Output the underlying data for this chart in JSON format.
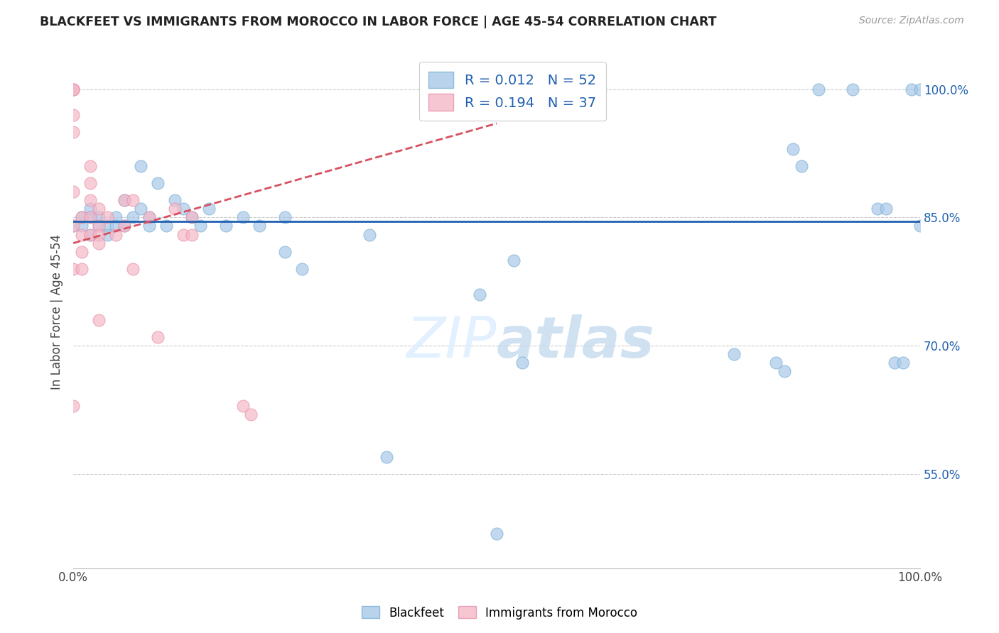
{
  "title": "BLACKFEET VS IMMIGRANTS FROM MOROCCO IN LABOR FORCE | AGE 45-54 CORRELATION CHART",
  "source": "Source: ZipAtlas.com",
  "ylabel": "In Labor Force | Age 45-54",
  "xlim": [
    0.0,
    1.0
  ],
  "ylim": [
    0.44,
    1.04
  ],
  "yticks": [
    0.55,
    0.7,
    0.85,
    1.0
  ],
  "yticklabels": [
    "55.0%",
    "70.0%",
    "85.0%",
    "100.0%"
  ],
  "xtick_left": "0.0%",
  "xtick_right": "100.0%",
  "R_blue": 0.012,
  "N_blue": 52,
  "R_pink": 0.194,
  "N_pink": 37,
  "blue_color": "#a8c8e8",
  "blue_edge_color": "#7aafd4",
  "pink_color": "#f4b8c8",
  "pink_edge_color": "#e890a8",
  "blue_line_color": "#2060b0",
  "pink_line_color": "#d85060",
  "watermark_color": "#ddeeff",
  "blue_scatter_x": [
    0.0,
    0.01,
    0.01,
    0.02,
    0.02,
    0.02,
    0.03,
    0.03,
    0.04,
    0.04,
    0.05,
    0.05,
    0.06,
    0.06,
    0.07,
    0.08,
    0.08,
    0.09,
    0.09,
    0.1,
    0.11,
    0.12,
    0.13,
    0.14,
    0.15,
    0.16,
    0.18,
    0.2,
    0.22,
    0.25,
    0.25,
    0.27,
    0.35,
    0.37,
    0.48,
    0.5,
    0.52,
    0.53,
    0.78,
    0.83,
    0.84,
    0.85,
    0.86,
    0.88,
    0.92,
    0.95,
    0.96,
    0.97,
    0.98,
    0.99,
    1.0,
    1.0
  ],
  "blue_scatter_y": [
    0.84,
    0.84,
    0.85,
    0.85,
    0.83,
    0.86,
    0.84,
    0.85,
    0.84,
    0.83,
    0.85,
    0.84,
    0.84,
    0.87,
    0.85,
    0.91,
    0.86,
    0.84,
    0.85,
    0.89,
    0.84,
    0.87,
    0.86,
    0.85,
    0.84,
    0.86,
    0.84,
    0.85,
    0.84,
    0.81,
    0.85,
    0.79,
    0.83,
    0.57,
    0.76,
    0.48,
    0.8,
    0.68,
    0.69,
    0.68,
    0.67,
    0.93,
    0.91,
    1.0,
    1.0,
    0.86,
    0.86,
    0.68,
    0.68,
    1.0,
    1.0,
    0.84
  ],
  "pink_scatter_x": [
    0.0,
    0.0,
    0.0,
    0.0,
    0.0,
    0.0,
    0.0,
    0.0,
    0.0,
    0.01,
    0.01,
    0.01,
    0.01,
    0.02,
    0.02,
    0.02,
    0.02,
    0.02,
    0.03,
    0.03,
    0.03,
    0.03,
    0.03,
    0.04,
    0.05,
    0.06,
    0.06,
    0.07,
    0.07,
    0.09,
    0.1,
    0.12,
    0.13,
    0.14,
    0.14,
    0.2,
    0.21
  ],
  "pink_scatter_y": [
    1.0,
    1.0,
    1.0,
    0.97,
    0.95,
    0.88,
    0.84,
    0.79,
    0.63,
    0.85,
    0.83,
    0.81,
    0.79,
    0.91,
    0.89,
    0.87,
    0.85,
    0.83,
    0.86,
    0.84,
    0.83,
    0.82,
    0.73,
    0.85,
    0.83,
    0.87,
    0.84,
    0.87,
    0.79,
    0.85,
    0.71,
    0.86,
    0.83,
    0.85,
    0.83,
    0.63,
    0.62
  ],
  "blue_trendline_x": [
    0.0,
    1.0
  ],
  "blue_trendline_y": [
    0.845,
    0.845
  ],
  "pink_trendline_x": [
    0.0,
    0.5
  ],
  "pink_trendline_y": [
    0.82,
    0.96
  ]
}
